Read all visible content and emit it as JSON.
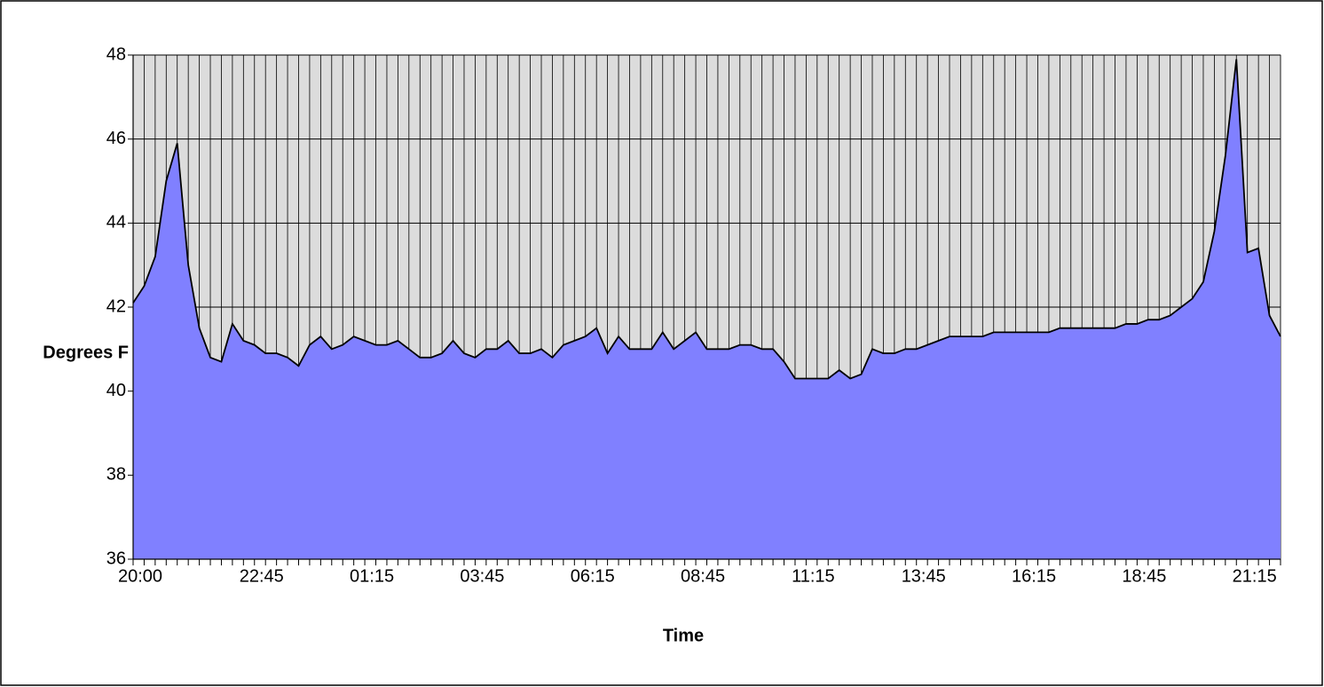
{
  "chart_data": {
    "type": "area",
    "x_label": "Time",
    "y_label": "Degrees F",
    "categories": [
      "20:00",
      null,
      null,
      null,
      null,
      null,
      null,
      null,
      null,
      null,
      null,
      "22:45",
      null,
      null,
      null,
      null,
      null,
      null,
      null,
      null,
      null,
      "01:15",
      null,
      null,
      null,
      null,
      null,
      null,
      null,
      null,
      null,
      "03:45",
      null,
      null,
      null,
      null,
      null,
      null,
      null,
      null,
      null,
      "06:15",
      null,
      null,
      null,
      null,
      null,
      null,
      null,
      null,
      null,
      "08:45",
      null,
      null,
      null,
      null,
      null,
      null,
      null,
      null,
      null,
      "11:15",
      null,
      null,
      null,
      null,
      null,
      null,
      null,
      null,
      null,
      "13:45",
      null,
      null,
      null,
      null,
      null,
      null,
      null,
      null,
      null,
      "16:15",
      null,
      null,
      null,
      null,
      null,
      null,
      null,
      null,
      null,
      "18:45",
      null,
      null,
      null,
      null,
      null,
      null,
      null,
      null,
      null,
      "21:15",
      null,
      null,
      null
    ],
    "values": [
      42.1,
      42.5,
      43.2,
      45.0,
      45.9,
      43.0,
      41.5,
      40.8,
      40.7,
      41.6,
      41.2,
      41.1,
      40.9,
      40.9,
      40.8,
      40.6,
      41.1,
      41.3,
      41.0,
      41.1,
      41.3,
      41.2,
      41.1,
      41.1,
      41.2,
      41.0,
      40.8,
      40.8,
      40.9,
      41.2,
      40.9,
      40.8,
      41.0,
      41.0,
      41.2,
      40.9,
      40.9,
      41.0,
      40.8,
      41.1,
      41.2,
      41.3,
      41.5,
      40.9,
      41.3,
      41.0,
      41.0,
      41.0,
      41.4,
      41.0,
      41.2,
      41.4,
      41.0,
      41.0,
      41.0,
      41.1,
      41.1,
      41.0,
      41.0,
      40.7,
      40.3,
      40.3,
      40.3,
      40.3,
      40.5,
      40.3,
      40.4,
      41.0,
      40.9,
      40.9,
      41.0,
      41.0,
      41.1,
      41.2,
      41.3,
      41.3,
      41.3,
      41.3,
      41.4,
      41.4,
      41.4,
      41.4,
      41.4,
      41.4,
      41.5,
      41.5,
      41.5,
      41.5,
      41.5,
      41.5,
      41.6,
      41.6,
      41.7,
      41.7,
      41.8,
      42.0,
      42.2,
      42.6,
      43.8,
      45.6,
      47.9,
      43.3,
      43.4,
      41.8,
      41.3
    ],
    "color": "#8080ff",
    "plot_background": "#dcdcdc",
    "ylim": [
      36,
      48
    ],
    "yticks": [
      36,
      38,
      40,
      42,
      44,
      46,
      48
    ],
    "grid": true
  }
}
